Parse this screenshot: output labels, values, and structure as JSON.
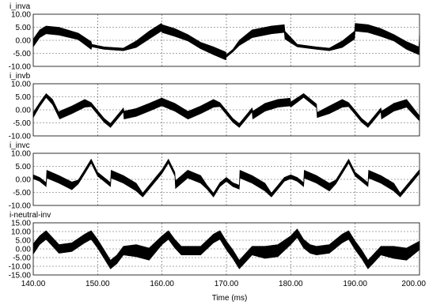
{
  "chart_data": [
    {
      "type": "line",
      "title": "i_inva",
      "xlim": [
        140,
        200
      ],
      "ylim": [
        -10,
        10
      ],
      "yticks": [
        "10.00",
        "5.00",
        "0.00",
        "-5.00",
        "-10.00"
      ],
      "series": [
        {
          "x": [
            140,
            141,
            142,
            144,
            147,
            149,
            149.1,
            151,
            154,
            156,
            158,
            159.9,
            160,
            162,
            164,
            166,
            168,
            169.9,
            170,
            171,
            172,
            174,
            177,
            179,
            179.1,
            181,
            184,
            186,
            188,
            189.9,
            190,
            192,
            194,
            196,
            198,
            199.9,
            200
          ],
          "y": [
            -1,
            2.5,
            4,
            3.5,
            1.5,
            -2,
            -2,
            -3,
            -3.5,
            -1.5,
            2,
            5,
            4.5,
            3,
            1,
            -2,
            -4,
            -6,
            -6,
            -4,
            -1,
            2.5,
            4,
            4.5,
            2,
            -2,
            -3,
            -3.5,
            -1.5,
            2,
            5,
            4.5,
            3,
            1,
            -2,
            -4,
            1
          ],
          "band": [
            3,
            3,
            3,
            3,
            2.5,
            3,
            1,
            1,
            1,
            2.5,
            3,
            3,
            3,
            3,
            2.5,
            2.5,
            3,
            3,
            1,
            1,
            2,
            3,
            3,
            3,
            3,
            1,
            1,
            1,
            2.5,
            3,
            3,
            3,
            3,
            2.5,
            3,
            3,
            2
          ]
        }
      ]
    },
    {
      "type": "line",
      "title": "i_invb",
      "xlim": [
        140,
        200
      ],
      "ylim": [
        -10,
        10
      ],
      "yticks": [
        "10.00",
        "5.00",
        "0.00",
        "-5.00",
        "-10.00"
      ],
      "series": [
        {
          "x": [
            140,
            141,
            142,
            143,
            144,
            144.1,
            146,
            148,
            149,
            150,
            151,
            152,
            153,
            154,
            154.1,
            156,
            158,
            159.9,
            160,
            162,
            164,
            164.1,
            166,
            168,
            169,
            170,
            171,
            172,
            173,
            174,
            174.1,
            176,
            178,
            179.9,
            180,
            182,
            184,
            184.1,
            186,
            188,
            189,
            190,
            191,
            192,
            193,
            194,
            194.1,
            196,
            198,
            199.9,
            200
          ],
          "y": [
            -2,
            2,
            5.5,
            3,
            -2,
            -2,
            0,
            2.5,
            2,
            -1,
            -4,
            -6,
            -3,
            0,
            -2,
            -1,
            1,
            3,
            3,
            1,
            -2,
            -2,
            0,
            2.5,
            2,
            -1,
            -4,
            -6,
            -3,
            0,
            -2,
            1,
            2.5,
            3,
            2,
            5.5,
            1.5,
            -2,
            0,
            2.5,
            2,
            -1,
            -4,
            -6,
            -3,
            0,
            -2,
            1,
            2.5,
            -3,
            -3
          ],
          "band": [
            2,
            1.5,
            1.5,
            2,
            2,
            3,
            3,
            3,
            1.5,
            1.5,
            1.5,
            1.5,
            1.5,
            1.5,
            3,
            3,
            3,
            3,
            3,
            3,
            3,
            3,
            3,
            3,
            1.5,
            1.5,
            1.5,
            1.5,
            1.5,
            1.5,
            3,
            3,
            3,
            3,
            2,
            1.5,
            1.5,
            2,
            3,
            3,
            1.5,
            1.5,
            1.5,
            1.5,
            1.5,
            1.5,
            3,
            3,
            3,
            2,
            2
          ]
        }
      ]
    },
    {
      "type": "line",
      "title": "i_invc",
      "xlim": [
        140,
        200
      ],
      "ylim": [
        -10,
        10
      ],
      "yticks": [
        "10.00",
        "5.00",
        "0.00",
        "-5.00",
        "-10.00"
      ],
      "series": [
        {
          "x": [
            140,
            141,
            142,
            142.1,
            144,
            146,
            147,
            148,
            149,
            150,
            151,
            152,
            152.1,
            154,
            156,
            157,
            158,
            159,
            160,
            161,
            162,
            162.1,
            164,
            166,
            167,
            168,
            169,
            170,
            171,
            172,
            172.1,
            174,
            176,
            177,
            178,
            179,
            180,
            181,
            182,
            182.1,
            184,
            186,
            187,
            188,
            189,
            190,
            191,
            192,
            192.1,
            194,
            196,
            197,
            198,
            199,
            200
          ],
          "y": [
            1,
            0,
            -2,
            2,
            0,
            -2.5,
            -1,
            3,
            7,
            2,
            0,
            -2,
            2,
            0,
            -3,
            -6,
            -3,
            0,
            3,
            7,
            2,
            -2,
            2,
            0,
            -3,
            -6,
            -2,
            0,
            -2,
            -3,
            2,
            0,
            -3,
            -6,
            -3,
            0,
            1,
            0,
            -2,
            2,
            0,
            -3,
            -1,
            3,
            7,
            2,
            0,
            -2,
            2,
            0,
            -3,
            -6,
            -3,
            0,
            3
          ],
          "band": [
            1.5,
            1.5,
            1.5,
            3,
            3,
            3,
            1.5,
            1.5,
            1.5,
            1.5,
            1.5,
            1.5,
            3,
            3,
            3,
            1.5,
            1.5,
            1.5,
            1.5,
            1.5,
            1.5,
            3,
            3,
            3,
            1.5,
            1.5,
            1.5,
            1.5,
            1.5,
            1.5,
            3,
            3,
            3,
            1.5,
            1.5,
            1.5,
            1.5,
            1.5,
            1.5,
            3,
            3,
            3,
            1.5,
            1.5,
            1.5,
            1.5,
            1.5,
            1.5,
            3,
            3,
            3,
            1.5,
            1.5,
            1.5,
            1.5
          ]
        }
      ]
    },
    {
      "type": "line",
      "title": "i-neutral-inv",
      "xlim": [
        140,
        200
      ],
      "ylim": [
        -15,
        15
      ],
      "yticks": [
        "15.00",
        "10.00",
        "5.00",
        "0.00",
        "-5.00",
        "-10.00",
        "-15.00"
      ],
      "series": [
        {
          "x": [
            140,
            141,
            142,
            143,
            144,
            146,
            148,
            149,
            150,
            151,
            152,
            153,
            154,
            156,
            158,
            160,
            161,
            162,
            163,
            164,
            166,
            168,
            169,
            170,
            171,
            172,
            173,
            174,
            176,
            178,
            180,
            181,
            182,
            183,
            184,
            186,
            188,
            189,
            190,
            191,
            192,
            193,
            194,
            196,
            198,
            200
          ],
          "y": [
            0,
            5,
            8,
            4,
            0,
            1,
            6,
            8,
            3,
            -3,
            -9,
            -6,
            -1,
            -1,
            -3,
            5,
            8,
            3,
            -1,
            -1,
            -1,
            6,
            8,
            2,
            -3,
            -9,
            -5,
            -1,
            -2,
            -1,
            5,
            9,
            3,
            0,
            -1,
            0,
            6,
            8,
            2,
            -3,
            -9,
            -5,
            -1,
            -2,
            -3,
            2
          ],
          "band": [
            6,
            5,
            5,
            5,
            5,
            5,
            5,
            5,
            5,
            5,
            5,
            5,
            5,
            7,
            7,
            5,
            5,
            5,
            5,
            5,
            5,
            5,
            5,
            5,
            5,
            5,
            5,
            5,
            7,
            7,
            5,
            5,
            5,
            5,
            5,
            5,
            5,
            5,
            5,
            5,
            5,
            5,
            5,
            7,
            7,
            5
          ]
        }
      ]
    }
  ],
  "x_axis": {
    "ticks": [
      "140.00",
      "150.00",
      "160.00",
      "170.00",
      "180.00",
      "190.00",
      "200.00"
    ],
    "label": "Time  (ms)"
  }
}
